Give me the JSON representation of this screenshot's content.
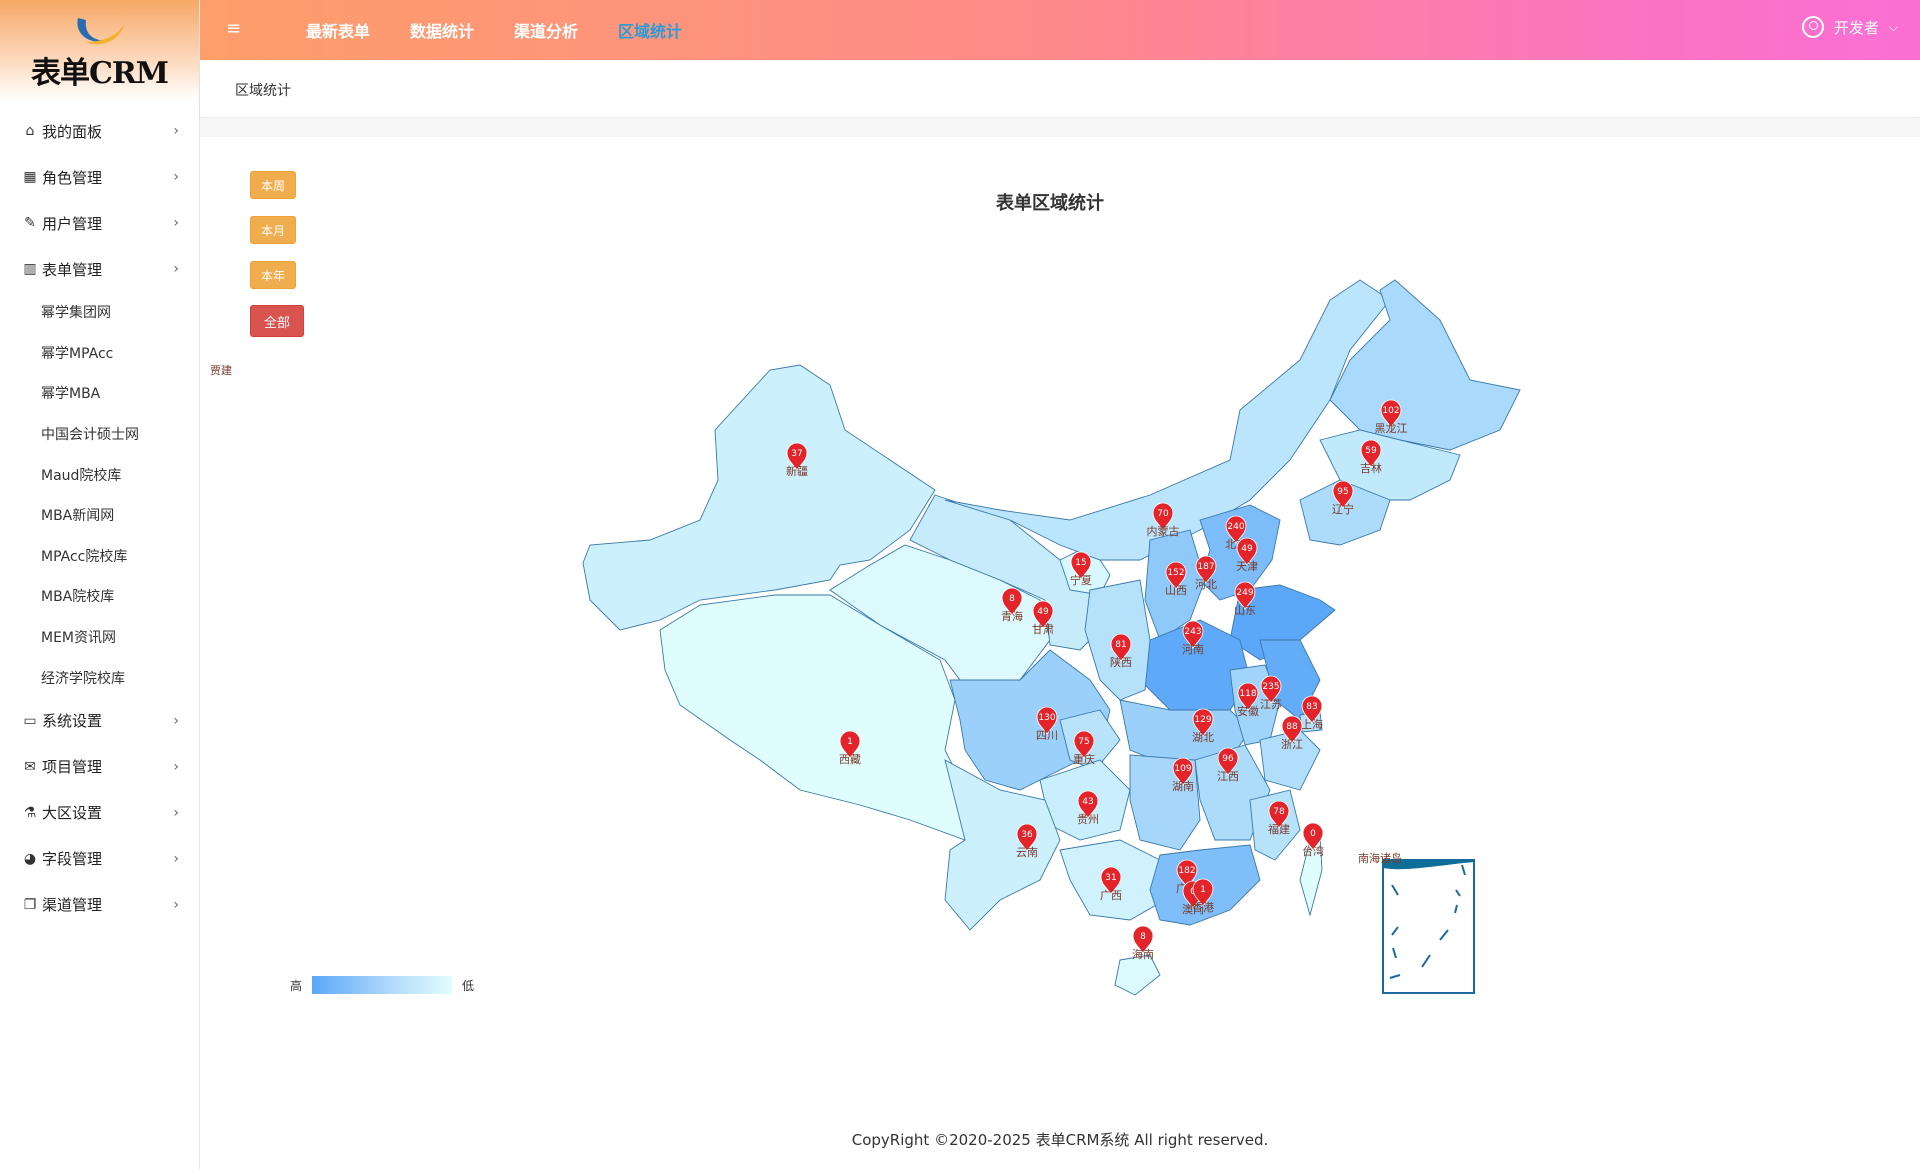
{
  "app": {
    "logo": "表单CRM"
  },
  "sidebar": {
    "items": [
      {
        "label": "我的面板",
        "icon": "home-icon"
      },
      {
        "label": "角色管理",
        "icon": "table-icon"
      },
      {
        "label": "用户管理",
        "icon": "edit-icon"
      },
      {
        "label": "表单管理",
        "icon": "bar-chart-icon"
      },
      {
        "label": "系统设置",
        "icon": "monitor-icon"
      },
      {
        "label": "项目管理",
        "icon": "envelope-icon"
      },
      {
        "label": "大区设置",
        "icon": "flask-icon"
      },
      {
        "label": "字段管理",
        "icon": "pie-chart-icon"
      },
      {
        "label": "渠道管理",
        "icon": "copy-icon"
      }
    ],
    "sub_items": [
      "幂学集团网",
      "幂学MPAcc",
      "幂学MBA",
      "中国会计硕士网",
      "Maud院校库",
      "MBA新闻网",
      "MPAcc院校库",
      "MBA院校库",
      "MEM资讯网",
      "经济学院校库"
    ]
  },
  "topnav": {
    "tabs": [
      "最新表单",
      "数据统计",
      "渠道分析",
      "区域统计"
    ],
    "active": 3
  },
  "user": {
    "name": "开发者"
  },
  "breadcrumb": "区域统计",
  "filters": [
    "本周",
    "本月",
    "本年",
    "全部"
  ],
  "stray_label": "贾建",
  "map": {
    "title": "表单区域统计",
    "inset_label": "南海诸岛",
    "legend": {
      "high": "高",
      "low": "低"
    },
    "colors": {
      "low": "#e0fdfd",
      "high": "#5ba7f8"
    }
  },
  "chart_data": {
    "type": "map",
    "title": "表单区域统计",
    "regions": [
      {
        "name": "新疆",
        "value": 37
      },
      {
        "name": "西藏",
        "value": 1
      },
      {
        "name": "青海",
        "value": 8
      },
      {
        "name": "甘肃",
        "value": 49
      },
      {
        "name": "宁夏",
        "value": 15
      },
      {
        "name": "内蒙古",
        "value": 70
      },
      {
        "name": "黑龙江",
        "value": 102
      },
      {
        "name": "吉林",
        "value": 59
      },
      {
        "name": "辽宁",
        "value": 95
      },
      {
        "name": "北京",
        "value": 240
      },
      {
        "name": "天津",
        "value": 49
      },
      {
        "name": "河北",
        "value": 187
      },
      {
        "name": "山西",
        "value": 152
      },
      {
        "name": "山东",
        "value": 249
      },
      {
        "name": "河南",
        "value": 243
      },
      {
        "name": "陕西",
        "value": 81
      },
      {
        "name": "四川",
        "value": 130
      },
      {
        "name": "重庆",
        "value": 75
      },
      {
        "name": "湖北",
        "value": 129
      },
      {
        "name": "安徽",
        "value": 118
      },
      {
        "name": "江苏",
        "value": 235
      },
      {
        "name": "上海",
        "value": 83
      },
      {
        "name": "浙江",
        "value": 88
      },
      {
        "name": "江西",
        "value": 96
      },
      {
        "name": "湖南",
        "value": 109
      },
      {
        "name": "贵州",
        "value": 43
      },
      {
        "name": "云南",
        "value": 36
      },
      {
        "name": "广西",
        "value": 31
      },
      {
        "name": "广东",
        "value": 182
      },
      {
        "name": "福建",
        "value": 78
      },
      {
        "name": "台湾",
        "value": 0
      },
      {
        "name": "澳门",
        "value": 0
      },
      {
        "name": "香港",
        "value": 1
      },
      {
        "name": "海南",
        "value": 8
      }
    ],
    "legend": {
      "high": "高",
      "low": "低"
    }
  },
  "footer": "CopyRight ©2020-2025 表单CRM系统 All right reserved."
}
